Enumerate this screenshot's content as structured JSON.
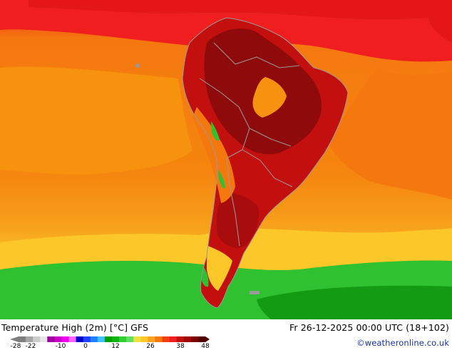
{
  "map": {
    "title": "Temperature High (2m) [°C] GFS",
    "datetime": "Fr 26-12-2025 00:00 UTC (18+102)",
    "credit": "©weatheronline.co.uk",
    "region": "South America",
    "temperature_band_colors": {
      "very_hot": "#8f0a0a",
      "hot": "#c40f0f",
      "warm_red": "#f01e1e",
      "orange": "#f5780f",
      "light_orange": "#f8a31c",
      "yellow": "#fbc729",
      "green": "#2fc12f",
      "dark_green": "#139b13",
      "border": "#9a9a9a"
    }
  },
  "legend": {
    "tick_labels": [
      "-28",
      "-22",
      "-10",
      "0",
      "12",
      "26",
      "38",
      "48"
    ],
    "tick_values": [
      -28,
      -22,
      -10,
      0,
      12,
      26,
      38,
      48
    ],
    "colors": [
      "#7f7f7f",
      "#a6a6a6",
      "#cccccc",
      "#e6e6e6",
      "#a000a0",
      "#c800c8",
      "#f000f0",
      "#ff60ff",
      "#0000c8",
      "#2040ff",
      "#2080ff",
      "#40c0ff",
      "#00a000",
      "#10b410",
      "#30d030",
      "#60e060",
      "#f0e040",
      "#fbc729",
      "#f8a31c",
      "#f5780f",
      "#f04010",
      "#f01e1e",
      "#c40f0f",
      "#a00808",
      "#800000",
      "#500000"
    ]
  }
}
